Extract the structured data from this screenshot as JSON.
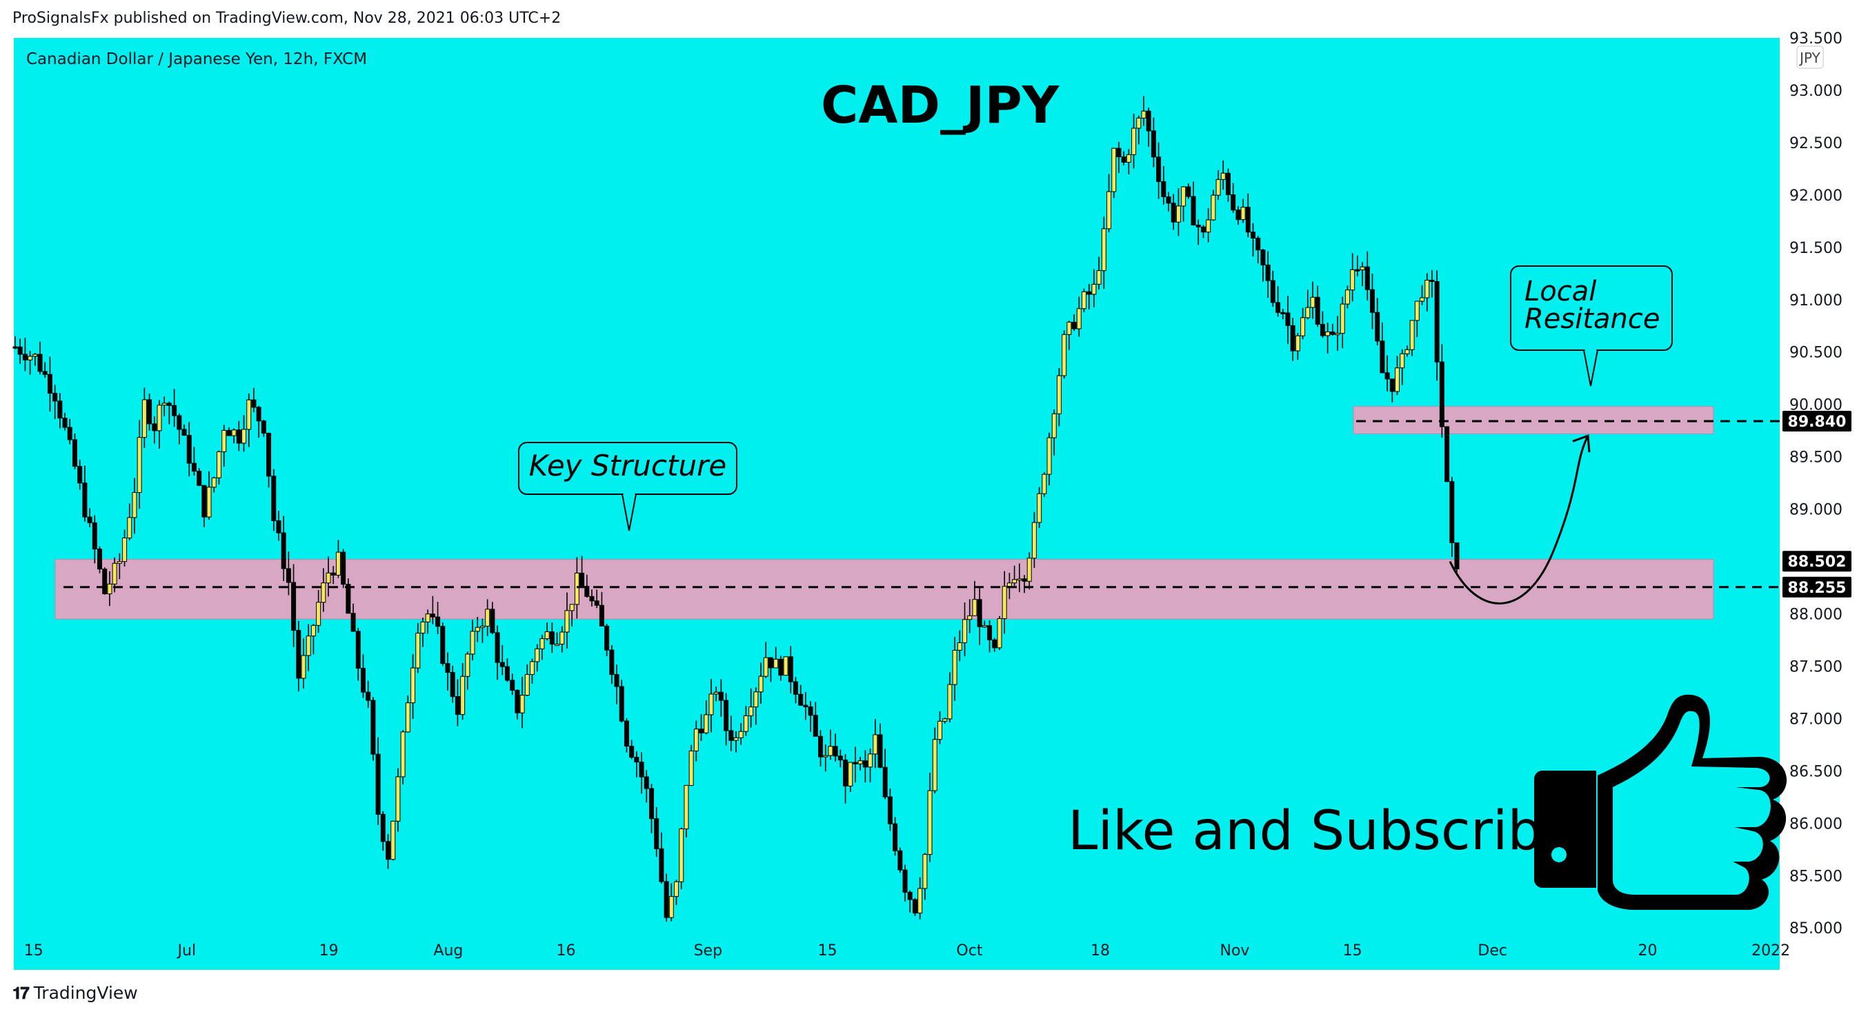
{
  "header": {
    "published": "ProSignalsFx published on TradingView.com, Nov 28, 2021 06:03 UTC+2"
  },
  "footer": {
    "brand": "TradingView"
  },
  "colors": {
    "background": "#00f0f0",
    "bull_candle": "#f5e85a",
    "bear_candle": "#000000",
    "zone": "#d8a7c4",
    "axis_bg": "#ffffff"
  },
  "chart_data": {
    "type": "candlestick",
    "symbol_line": "Canadian Dollar / Japanese Yen, 12h, FXCM",
    "title": "CAD_JPY",
    "currency_badge": "JPY",
    "ylim": [
      84.6,
      93.5
    ],
    "y_ticks": [
      "93.500",
      "93.000",
      "92.500",
      "92.000",
      "91.500",
      "91.000",
      "90.500",
      "90.000",
      "89.500",
      "89.000",
      "88.500",
      "88.000",
      "87.500",
      "87.000",
      "86.500",
      "86.000",
      "85.500",
      "85.000"
    ],
    "x_ticks": [
      {
        "label": "15",
        "pos": 0.018
      },
      {
        "label": "Jul",
        "pos": 0.1
      },
      {
        "label": "19",
        "pos": 0.176
      },
      {
        "label": "Aug",
        "pos": 0.24
      },
      {
        "label": "16",
        "pos": 0.303
      },
      {
        "label": "Sep",
        "pos": 0.379
      },
      {
        "label": "15",
        "pos": 0.443
      },
      {
        "label": "Oct",
        "pos": 0.519
      },
      {
        "label": "18",
        "pos": 0.589
      },
      {
        "label": "Nov",
        "pos": 0.661
      },
      {
        "label": "15",
        "pos": 0.724
      },
      {
        "label": "Dec",
        "pos": 0.799
      },
      {
        "label": "20",
        "pos": 0.882
      },
      {
        "label": "2022",
        "pos": 0.948
      }
    ],
    "price_labels": [
      {
        "value": 89.84,
        "text": "89.840"
      },
      {
        "value": 88.502,
        "text": "88.502"
      },
      {
        "value": 88.255,
        "text": "88.255"
      }
    ],
    "zones": [
      {
        "name": "Key Structure",
        "from": 87.95,
        "to": 88.52
      },
      {
        "name": "Local Resitance",
        "from": 89.72,
        "to": 89.98
      }
    ],
    "annotations": {
      "key_structure": "Key Structure",
      "local_line1": "Local",
      "local_line2": "Resitance",
      "cta": "Like and Subscribe"
    },
    "path_points": [
      [
        0,
        90.55
      ],
      [
        4,
        90.45
      ],
      [
        8,
        90.1
      ],
      [
        12,
        89.4
      ],
      [
        16,
        88.6
      ],
      [
        18,
        88.2
      ],
      [
        21,
        88.5
      ],
      [
        24,
        89.2
      ],
      [
        26,
        90.0
      ],
      [
        28,
        89.8
      ],
      [
        30,
        90.1
      ],
      [
        32,
        89.9
      ],
      [
        35,
        89.5
      ],
      [
        38,
        89.0
      ],
      [
        40,
        89.3
      ],
      [
        42,
        89.8
      ],
      [
        45,
        89.7
      ],
      [
        47,
        90.0
      ],
      [
        50,
        89.8
      ],
      [
        52,
        88.9
      ],
      [
        55,
        88.3
      ],
      [
        57,
        87.4
      ],
      [
        59,
        87.7
      ],
      [
        61,
        88.1
      ],
      [
        63,
        88.4
      ],
      [
        65,
        88.5
      ],
      [
        67,
        88.0
      ],
      [
        69,
        87.5
      ],
      [
        71,
        87.1
      ],
      [
        73,
        86.1
      ],
      [
        75,
        85.7
      ],
      [
        77,
        86.4
      ],
      [
        79,
        87.2
      ],
      [
        81,
        87.9
      ],
      [
        83,
        88.0
      ],
      [
        85,
        87.8
      ],
      [
        87,
        87.4
      ],
      [
        89,
        87.1
      ],
      [
        91,
        87.6
      ],
      [
        93,
        87.9
      ],
      [
        95,
        88.0
      ],
      [
        97,
        87.6
      ],
      [
        99,
        87.3
      ],
      [
        101,
        87.1
      ],
      [
        103,
        87.4
      ],
      [
        105,
        87.7
      ],
      [
        107,
        87.8
      ],
      [
        109,
        87.8
      ],
      [
        111,
        88.0
      ],
      [
        113,
        88.3
      ],
      [
        115,
        88.2
      ],
      [
        117,
        88.0
      ],
      [
        119,
        87.7
      ],
      [
        121,
        87.3
      ],
      [
        123,
        86.8
      ],
      [
        125,
        86.6
      ],
      [
        127,
        86.3
      ],
      [
        129,
        85.8
      ],
      [
        131,
        85.1
      ],
      [
        133,
        85.4
      ],
      [
        135,
        86.4
      ],
      [
        137,
        86.9
      ],
      [
        139,
        87.0
      ],
      [
        141,
        87.3
      ],
      [
        143,
        86.9
      ],
      [
        145,
        86.8
      ],
      [
        147,
        87.1
      ],
      [
        149,
        87.3
      ],
      [
        151,
        87.6
      ],
      [
        153,
        87.5
      ],
      [
        155,
        87.5
      ],
      [
        157,
        87.3
      ],
      [
        159,
        87.1
      ],
      [
        161,
        86.8
      ],
      [
        163,
        86.6
      ],
      [
        165,
        86.7
      ],
      [
        167,
        86.4
      ],
      [
        169,
        86.6
      ],
      [
        171,
        86.5
      ],
      [
        173,
        86.8
      ],
      [
        175,
        86.2
      ],
      [
        177,
        85.8
      ],
      [
        179,
        85.4
      ],
      [
        181,
        85.2
      ],
      [
        183,
        85.7
      ],
      [
        185,
        86.8
      ],
      [
        187,
        87.0
      ],
      [
        189,
        87.6
      ],
      [
        191,
        87.9
      ],
      [
        193,
        88.1
      ],
      [
        195,
        87.8
      ],
      [
        197,
        87.6
      ],
      [
        199,
        88.2
      ],
      [
        201,
        88.4
      ],
      [
        203,
        88.4
      ],
      [
        205,
        88.8
      ],
      [
        207,
        89.4
      ],
      [
        209,
        90.0
      ],
      [
        211,
        90.6
      ],
      [
        213,
        90.8
      ],
      [
        215,
        91.0
      ],
      [
        217,
        91.1
      ],
      [
        219,
        91.6
      ],
      [
        221,
        92.4
      ],
      [
        223,
        92.3
      ],
      [
        225,
        92.6
      ],
      [
        227,
        92.8
      ],
      [
        229,
        92.4
      ],
      [
        231,
        92.0
      ],
      [
        233,
        91.8
      ],
      [
        235,
        92.0
      ],
      [
        237,
        91.8
      ],
      [
        239,
        91.6
      ],
      [
        241,
        92.0
      ],
      [
        243,
        92.2
      ],
      [
        245,
        91.9
      ],
      [
        247,
        91.8
      ],
      [
        249,
        91.5
      ],
      [
        251,
        91.3
      ],
      [
        253,
        91.0
      ],
      [
        255,
        90.9
      ],
      [
        257,
        90.6
      ],
      [
        259,
        90.8
      ],
      [
        261,
        91.0
      ],
      [
        263,
        90.7
      ],
      [
        265,
        90.6
      ],
      [
        267,
        90.9
      ],
      [
        269,
        91.3
      ],
      [
        271,
        91.4
      ],
      [
        273,
        90.8
      ],
      [
        275,
        90.3
      ],
      [
        277,
        90.2
      ],
      [
        279,
        90.4
      ],
      [
        281,
        90.8
      ],
      [
        283,
        91.1
      ],
      [
        285,
        91.1
      ],
      [
        287,
        89.8
      ],
      [
        289,
        88.6
      ],
      [
        290,
        88.5
      ]
    ]
  }
}
